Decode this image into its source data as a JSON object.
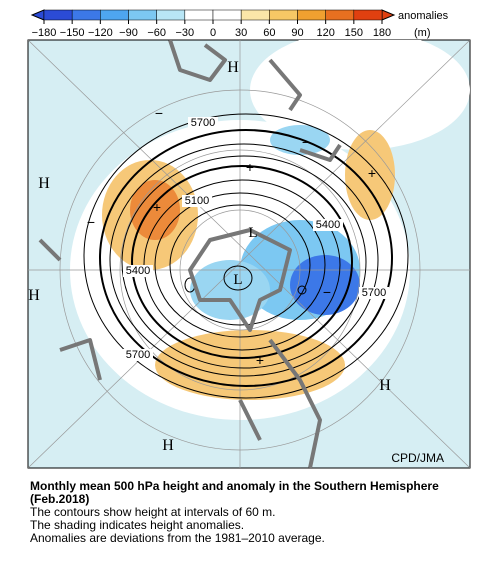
{
  "colorbar": {
    "label": "anomalies",
    "unit": "(m)",
    "ticks": [
      {
        "value": -180,
        "label": "−180"
      },
      {
        "value": -150,
        "label": "−150"
      },
      {
        "value": -120,
        "label": "−120"
      },
      {
        "value": -90,
        "label": "−90"
      },
      {
        "value": -60,
        "label": "−60"
      },
      {
        "value": -30,
        "label": "−30"
      },
      0,
      30,
      60,
      90,
      120,
      150,
      180
    ]
  },
  "map": {
    "labels": [
      "H",
      "H",
      "H",
      "H",
      "H",
      "L",
      "L",
      "5700",
      "5100",
      "5400",
      "5400",
      "5700",
      "5700",
      "+",
      "+",
      "+",
      "+",
      "−",
      "−",
      "−",
      "−"
    ],
    "credit": "CPD/JMA"
  },
  "caption": {
    "title": "Monthly mean 500 hPa height and anomaly in the Southern Hemisphere (Feb.2018)",
    "lines": [
      "The contours show height at intervals of 60 m.",
      "The shading indicates height anomalies.",
      "Anomalies are deviations from the 1981–2010 average."
    ]
  }
}
